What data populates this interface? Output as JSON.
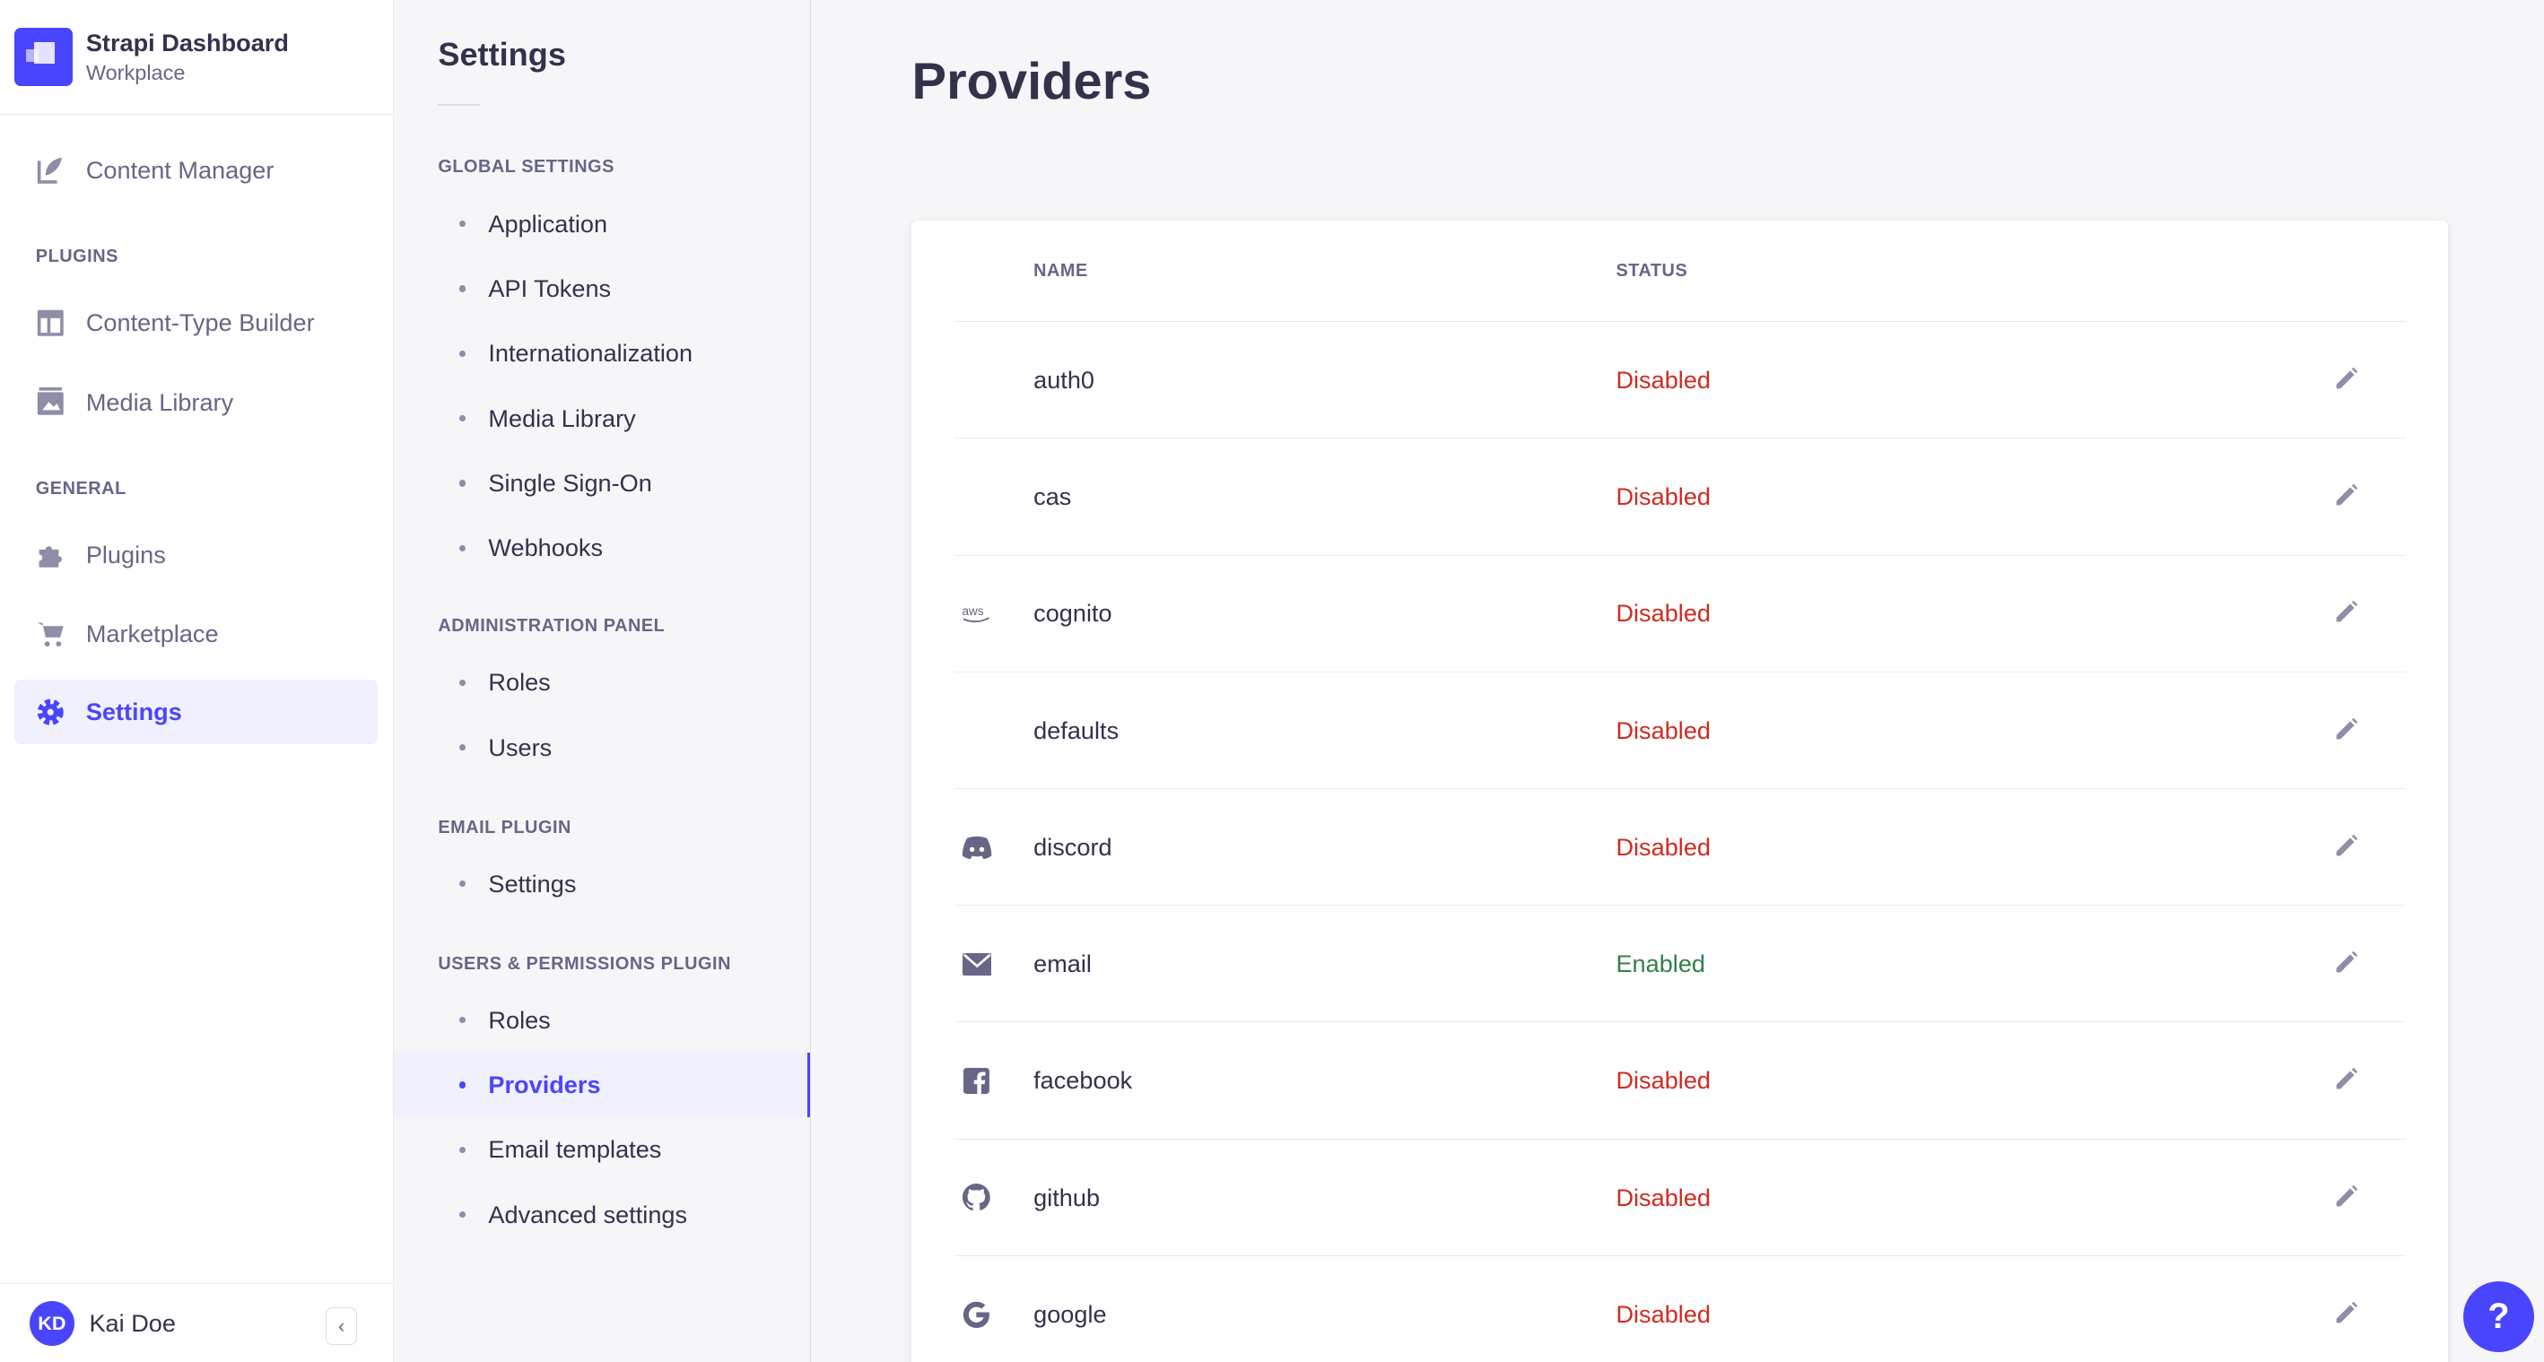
{
  "brand": {
    "title": "Strapi Dashboard",
    "subtitle": "Workplace"
  },
  "nav": {
    "content_manager": "Content Manager",
    "plugins_heading": "PLUGINS",
    "content_type_builder": "Content-Type Builder",
    "media_library": "Media Library",
    "general_heading": "GENERAL",
    "plugins": "Plugins",
    "marketplace": "Marketplace",
    "settings": "Settings"
  },
  "user": {
    "initials": "KD",
    "name": "Kai Doe"
  },
  "settings_nav": {
    "title": "Settings",
    "sections": [
      {
        "heading": "GLOBAL SETTINGS",
        "items": [
          "Application",
          "API Tokens",
          "Internationalization",
          "Media Library",
          "Single Sign-On",
          "Webhooks"
        ]
      },
      {
        "heading": "ADMINISTRATION PANEL",
        "items": [
          "Roles",
          "Users"
        ]
      },
      {
        "heading": "EMAIL PLUGIN",
        "items": [
          "Settings"
        ]
      },
      {
        "heading": "USERS & PERMISSIONS PLUGIN",
        "items": [
          "Roles",
          "Providers",
          "Email templates",
          "Advanced settings"
        ]
      }
    ],
    "active": "Providers"
  },
  "page": {
    "title": "Providers"
  },
  "table": {
    "columns": [
      "NAME",
      "STATUS"
    ],
    "rows": [
      {
        "icon": "none",
        "name": "auth0",
        "status": "Disabled"
      },
      {
        "icon": "aws-icon",
        "name": "cas",
        "status": "Disabled"
      },
      {
        "icon": "aws-icon",
        "name": "cognito",
        "status": "Disabled"
      },
      {
        "icon": "none",
        "name": "defaults",
        "status": "Disabled"
      },
      {
        "icon": "discord-icon",
        "name": "discord",
        "status": "Disabled"
      },
      {
        "icon": "envelope-icon",
        "name": "email",
        "status": "Enabled"
      },
      {
        "icon": "facebook-icon",
        "name": "facebook",
        "status": "Disabled"
      },
      {
        "icon": "github-icon",
        "name": "github",
        "status": "Disabled"
      },
      {
        "icon": "google-icon",
        "name": "google",
        "status": "Disabled"
      }
    ]
  },
  "help": {
    "label": "?"
  },
  "colors": {
    "accent": "#4945ff",
    "disabled": "#d02b20",
    "enabled": "#328048",
    "text": "#32324d"
  }
}
